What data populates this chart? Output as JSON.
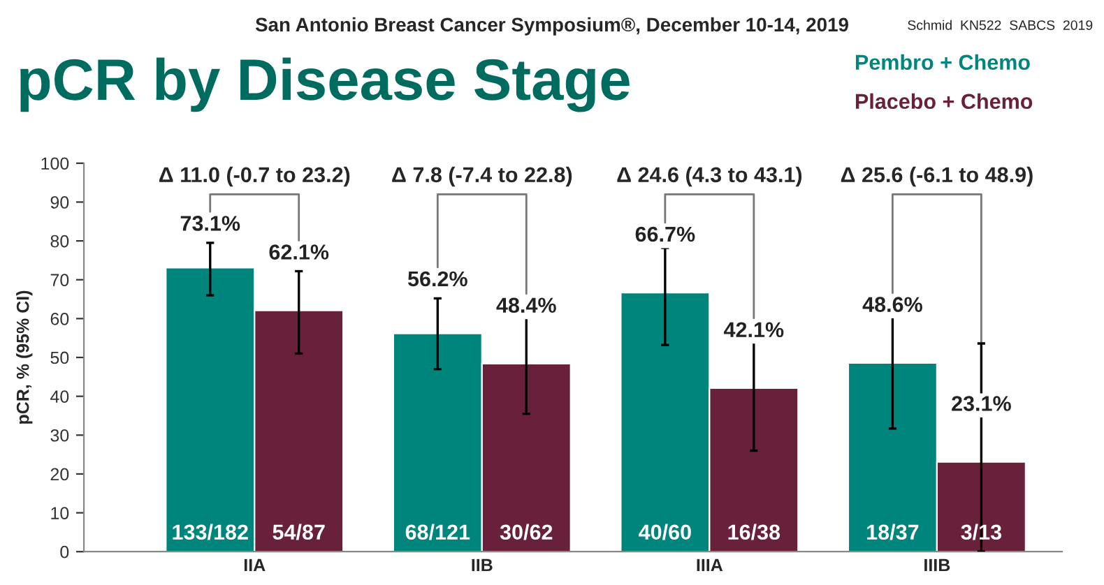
{
  "chart_data": {
    "type": "bar",
    "title": "pCR by Disease Stage",
    "subtitle": "San Antonio Breast Cancer Symposium®, December 10-14, 2019",
    "ylabel": "pCR, % (95% CI)",
    "categories": [
      "IIA",
      "IIB",
      "IIIA",
      "IIIB"
    ],
    "series": [
      {
        "name": "Pembro + Chemo",
        "color": "#00857c",
        "values": [
          73.1,
          56.2,
          66.7,
          48.6
        ],
        "value_labels": [
          "73.1%",
          "56.2%",
          "66.7%",
          "48.6%"
        ],
        "errors": [
          [
            66,
            79.5
          ],
          [
            47,
            65.2
          ],
          [
            53.2,
            78.2
          ],
          [
            31.7,
            65.4
          ]
        ]
      },
      {
        "name": "Placebo + Chemo",
        "color": "#69203a",
        "values": [
          62.1,
          48.4,
          42.1,
          23.1
        ],
        "value_labels": [
          "62.1%",
          "48.4%",
          "42.1%",
          "23.1%"
        ],
        "errors": [
          [
            51,
            72.2
          ],
          [
            35.5,
            61.6
          ],
          [
            26,
            59
          ],
          [
            0,
            53.6
          ]
        ]
      }
    ],
    "ylim": [
      0,
      100
    ],
    "yticks": [
      0,
      10,
      20,
      30,
      40,
      50,
      60,
      70,
      80,
      90,
      100
    ],
    "grid": false,
    "legend": "top right",
    "annotations": [
      "Schmid  KN522  SABCS  2019",
      "Δ 11.0 (-0.7 to 23.2)",
      "Δ 7.8 (-7.4 to 22.8)",
      "Δ 24.6 (4.3 to 43.1)",
      "Δ 25.6 (-6.1 to 48.9)",
      {
        "text": "133/182",
        "x": "IIA",
        "y": 0
      },
      {
        "text": "54/87",
        "x": "IIA",
        "y": 0
      },
      {
        "text": "68/121",
        "x": "IIB",
        "y": 0
      },
      {
        "text": "30/62",
        "x": "IIB",
        "y": 0
      },
      {
        "text": "40/60",
        "x": "IIIA",
        "y": 0
      },
      {
        "text": "16/38",
        "x": "IIIA",
        "y": 0
      },
      {
        "text": "18/37",
        "x": "IIIB",
        "y": 0
      },
      {
        "text": "3/13",
        "x": "IIIB",
        "y": 0
      }
    ]
  }
}
